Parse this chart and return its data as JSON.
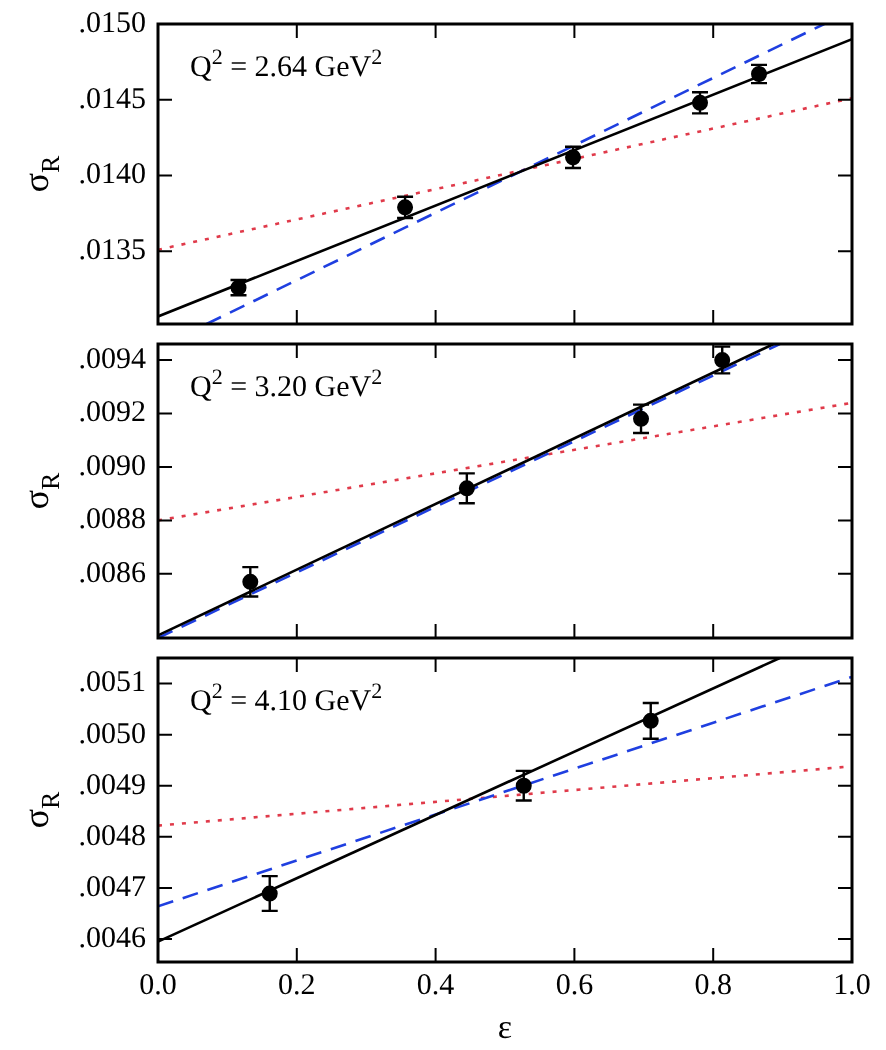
{
  "chart_data": [
    {
      "type": "scatter",
      "ylabel": "σ$_{R}$",
      "annotations": [
        "Q$^{2}$ = 2.64 GeV$^{2}$"
      ],
      "xlim": [
        0,
        1
      ],
      "xticks": [
        0,
        0.2,
        0.4,
        0.6,
        0.8,
        1
      ],
      "ylim": [
        0.01302,
        0.015
      ],
      "yticks": [
        {
          "value": 0.0135,
          "label": ".0135"
        },
        {
          "value": 0.014,
          "label": ".0140"
        },
        {
          "value": 0.0145,
          "label": ".0145"
        },
        {
          "value": 0.015,
          "label": ".0150"
        }
      ],
      "tick_labels": "y",
      "grid": false,
      "legend": false,
      "series": [
        {
          "color": "#000000",
          "marker": "circle",
          "x": [
            0.116,
            0.356,
            0.598,
            0.781,
            0.866
          ],
          "values": [
            0.01326,
            0.01379,
            0.01412,
            0.01448,
            0.01467
          ],
          "errors": [
            5e-05,
            7e-05,
            7e-05,
            7e-05,
            6e-05
          ]
        },
        {
          "type": "line",
          "color": "#000000",
          "line_style": "solid",
          "marker": "none",
          "x": [
            0,
            1
          ],
          "values": [
            0.01307,
            0.0149
          ]
        },
        {
          "type": "line",
          "color": "#1f3fe0",
          "line_style": "dashed",
          "marker": "none",
          "x": [
            0.07,
            0.96
          ],
          "values": [
            0.01302,
            0.015
          ]
        },
        {
          "type": "line",
          "color": "#e03a4a",
          "line_style": "dotted",
          "marker": "none",
          "x": [
            0,
            1
          ],
          "values": [
            0.01351,
            0.01451
          ]
        }
      ]
    },
    {
      "type": "scatter",
      "ylabel": "σ$_{R}$",
      "annotations": [
        "Q$^{2}$ = 3.20 GeV$^{2}$"
      ],
      "xlim": [
        0,
        1
      ],
      "xticks": [
        0,
        0.2,
        0.4,
        0.6,
        0.8,
        1
      ],
      "ylim": [
        0.00836,
        0.00946
      ],
      "yticks": [
        {
          "value": 0.0086,
          "label": ".0086"
        },
        {
          "value": 0.0088,
          "label": ".0088"
        },
        {
          "value": 0.009,
          "label": ".0090"
        },
        {
          "value": 0.0092,
          "label": ".0092"
        },
        {
          "value": 0.0094,
          "label": ".0094"
        }
      ],
      "tick_labels": "y",
      "grid": false,
      "legend": false,
      "series": [
        {
          "color": "#000000",
          "marker": "circle",
          "x": [
            0.133,
            0.445,
            0.696,
            0.813
          ],
          "values": [
            0.00857,
            0.00892,
            0.00918,
            0.0094
          ],
          "errors": [
            5.5e-05,
            5.6e-05,
            5.3e-05,
            5e-05
          ]
        },
        {
          "type": "line",
          "color": "#000000",
          "line_style": "solid",
          "marker": "none",
          "x": [
            0,
            0.887
          ],
          "values": [
            0.00837,
            0.00946
          ]
        },
        {
          "type": "line",
          "color": "#1f3fe0",
          "line_style": "dashed",
          "marker": "none",
          "x": [
            0,
            0.896
          ],
          "values": [
            0.00836,
            0.00946
          ]
        },
        {
          "type": "line",
          "color": "#e03a4a",
          "line_style": "dotted",
          "marker": "none",
          "x": [
            0,
            1
          ],
          "values": [
            0.0088,
            0.00924
          ]
        }
      ]
    },
    {
      "type": "scatter",
      "xlabel": "ε",
      "ylabel": "σ$_{R}$",
      "annotations": [
        "Q$^{2}$ = 4.10 GeV$^{2}$"
      ],
      "xlim": [
        0,
        1
      ],
      "xticks": [
        {
          "value": 0,
          "label": "0.0"
        },
        {
          "value": 0.2,
          "label": "0.2"
        },
        {
          "value": 0.4,
          "label": "0.4"
        },
        {
          "value": 0.6,
          "label": "0.6"
        },
        {
          "value": 0.8,
          "label": "0.8"
        },
        {
          "value": 1,
          "label": "1.0"
        }
      ],
      "ylim": [
        0.004555,
        0.00515
      ],
      "yticks": [
        {
          "value": 0.0046,
          "label": ".0046"
        },
        {
          "value": 0.0047,
          "label": ".0047"
        },
        {
          "value": 0.0048,
          "label": ".0048"
        },
        {
          "value": 0.0049,
          "label": ".0049"
        },
        {
          "value": 0.005,
          "label": ".0050"
        },
        {
          "value": 0.0051,
          "label": ".0051"
        }
      ],
      "grid": false,
      "legend": false,
      "series": [
        {
          "color": "#000000",
          "marker": "circle",
          "x": [
            0.161,
            0.527,
            0.71
          ],
          "values": [
            0.004689,
            0.0049,
            0.005027
          ],
          "errors": [
            3.4e-05,
            2.9e-05,
            3.5e-05
          ]
        },
        {
          "type": "line",
          "color": "#000000",
          "line_style": "solid",
          "marker": "none",
          "x": [
            0,
            0.896
          ],
          "values": [
            0.004595,
            0.00515
          ]
        },
        {
          "type": "line",
          "color": "#1f3fe0",
          "line_style": "dashed",
          "marker": "none",
          "x": [
            0,
            1
          ],
          "values": [
            0.004664,
            0.005113
          ]
        },
        {
          "type": "line",
          "color": "#e03a4a",
          "line_style": "dotted",
          "marker": "none",
          "x": [
            0,
            1
          ],
          "values": [
            0.004822,
            0.004938
          ]
        }
      ]
    }
  ]
}
